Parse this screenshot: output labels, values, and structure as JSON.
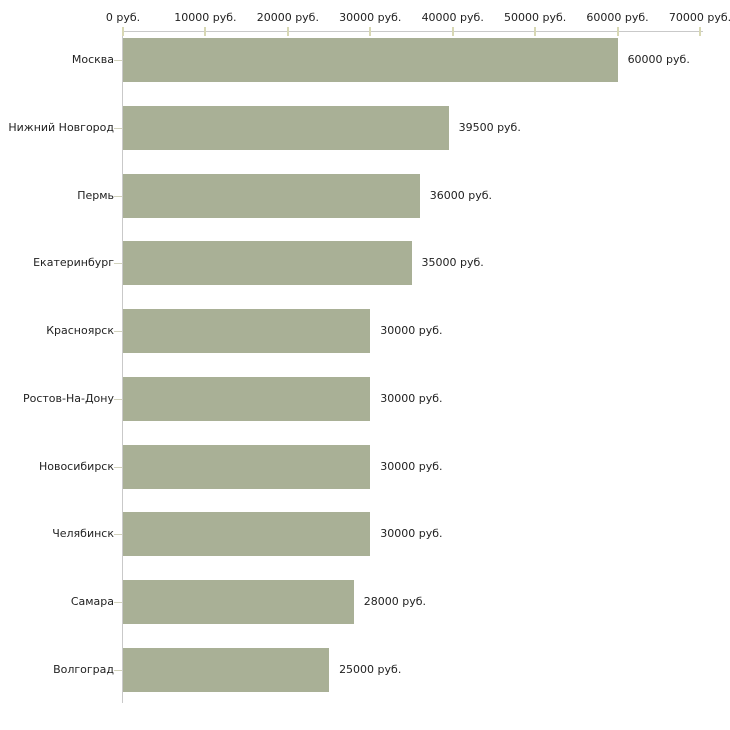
{
  "colors": {
    "background": "#ffffff",
    "bar": "#a9b096",
    "axis_line": "#c9c9c9",
    "tick": "#d8d8b4",
    "category_tick": "#d2d2bc",
    "text": "#222222"
  },
  "chart_data": {
    "type": "bar",
    "orientation": "horizontal",
    "title": "",
    "xlabel": "",
    "ylabel": "",
    "unit": "руб.",
    "categories": [
      "Москва",
      "Нижний Новгород",
      "Пермь",
      "Екатеринбург",
      "Красноярск",
      "Ростов-На-Дону",
      "Новосибирск",
      "Челябинск",
      "Самара",
      "Волгоград"
    ],
    "values": [
      60000,
      39500,
      36000,
      35000,
      30000,
      30000,
      30000,
      30000,
      28000,
      25000
    ],
    "value_labels": [
      "60000 руб.",
      "39500 руб.",
      "36000 руб.",
      "35000 руб.",
      "30000 руб.",
      "30000 руб.",
      "30000 руб.",
      "30000 руб.",
      "28000 руб.",
      "25000 руб."
    ],
    "xlim": [
      0,
      70000
    ],
    "x_tick_step": 10000,
    "x_tick_labels": [
      "0 руб.",
      "10000 руб.",
      "20000 руб.",
      "30000 руб.",
      "40000 руб.",
      "50000 руб.",
      "60000 руб.",
      "70000 руб."
    ],
    "grid": false,
    "legend": "none",
    "bar_color": "#a9b096"
  }
}
